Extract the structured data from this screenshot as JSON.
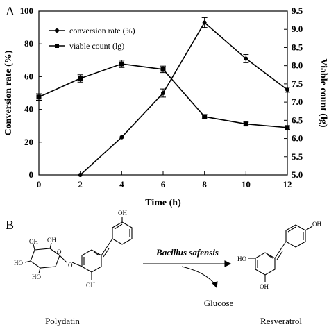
{
  "panels": {
    "a": "A",
    "b": "B"
  },
  "chart_data": {
    "type": "line",
    "xlabel": "Time (h)",
    "ylabel_left": "Conversion rate (%)",
    "ylabel_right": "Viable count (lg)",
    "xlim": [
      0,
      12
    ],
    "x_ticks": [
      "0",
      "2",
      "4",
      "6",
      "8",
      "10",
      "12"
    ],
    "ylim_left": [
      0,
      100
    ],
    "y_left_ticks": [
      "0",
      "20",
      "40",
      "60",
      "80",
      "100"
    ],
    "ylim_right": [
      5.0,
      9.5
    ],
    "y_right_ticks": [
      "5.0",
      "5.5",
      "6.0",
      "6.5",
      "7.0",
      "7.5",
      "8.0",
      "8.5",
      "9.0",
      "9.5"
    ],
    "grid": false,
    "legend_position": "top-left",
    "series": [
      {
        "name": "conversion rate (%)",
        "axis": "left",
        "marker": "circle",
        "x": [
          2,
          4,
          6,
          8,
          10,
          12
        ],
        "y": [
          0,
          23,
          50,
          93,
          71,
          52
        ],
        "err": [
          0,
          0,
          2.5,
          3,
          2.5,
          1.5
        ]
      },
      {
        "name": "viable count (lg)",
        "axis": "right",
        "marker": "square",
        "x": [
          0,
          2,
          4,
          6,
          8,
          10,
          12
        ],
        "y": [
          7.14,
          7.65,
          8.05,
          7.9,
          6.6,
          6.4,
          6.3
        ],
        "err": [
          0.09,
          0.1,
          0.1,
          0.09,
          0.06,
          0.05,
          0.05
        ]
      }
    ]
  },
  "scheme": {
    "left_compound": "Polydatin",
    "right_compound": "Resveratrol",
    "enzyme": "Bacillus safensis",
    "byproduct": "Glucose",
    "atoms": {
      "oh": "OH",
      "ho": "HO",
      "o": "O"
    }
  }
}
